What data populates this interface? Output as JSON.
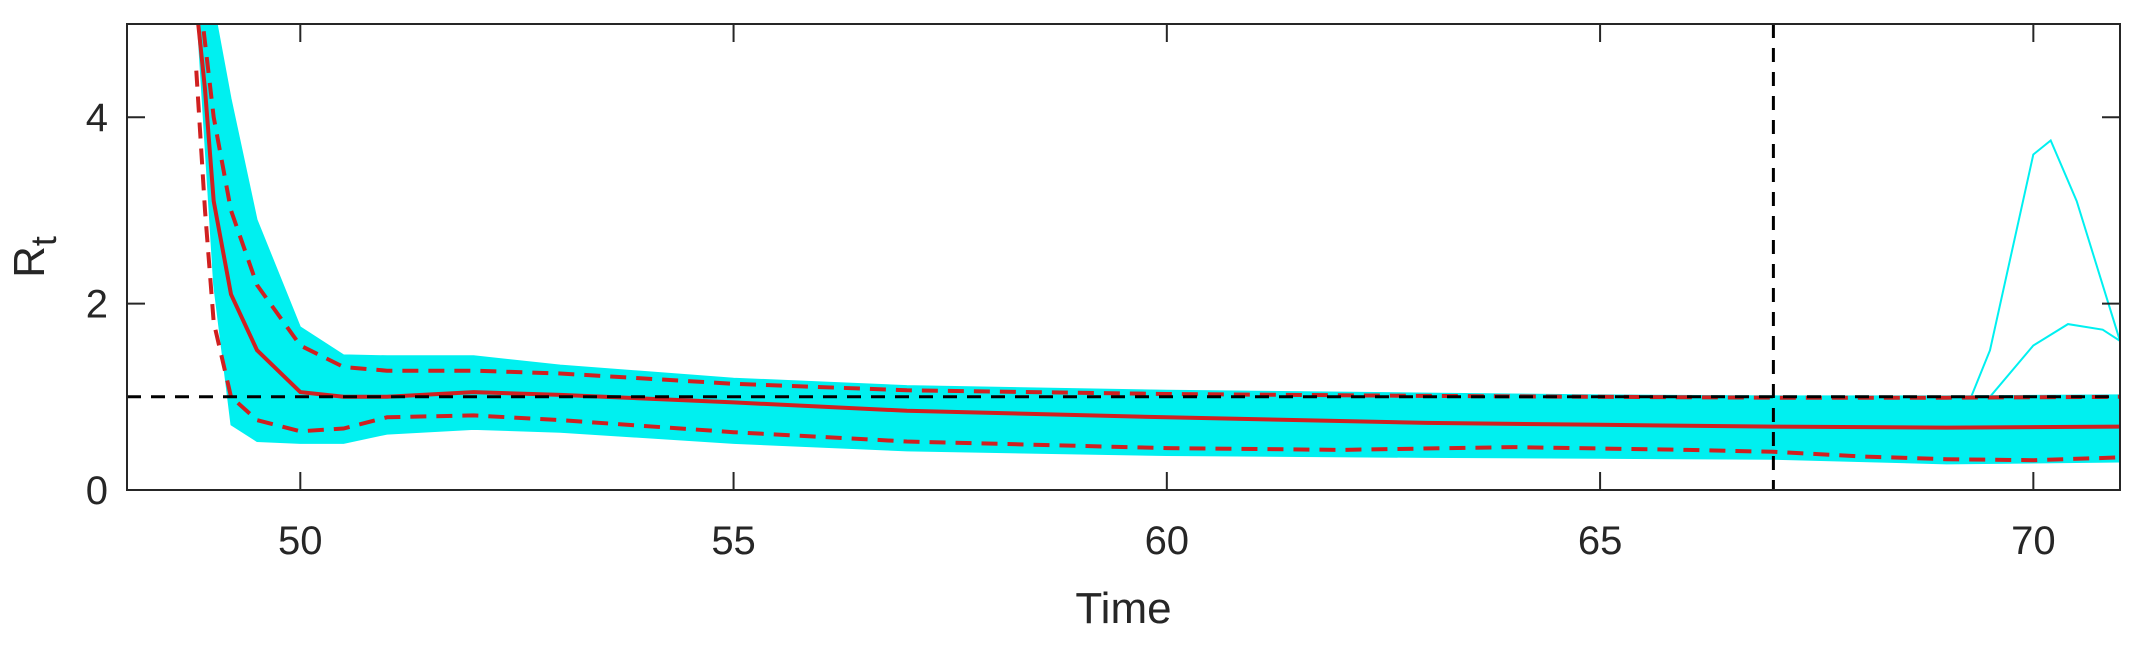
{
  "chart_data": {
    "type": "line",
    "title": "",
    "xlabel": "Time",
    "ylabel": "R",
    "ylabel_subscript": "t",
    "xlim": [
      48,
      71
    ],
    "ylim": [
      0,
      5
    ],
    "x_ticks": [
      50,
      55,
      60,
      65,
      70
    ],
    "x_tick_labels": [
      "50",
      "55",
      "60",
      "65",
      "70"
    ],
    "y_ticks": [
      0,
      2,
      4
    ],
    "y_tick_labels": [
      "0",
      "2",
      "4"
    ],
    "grid": false,
    "legend": "none",
    "reference_lines": {
      "horizontal_y": 1,
      "vertical_x": 67
    },
    "colors": {
      "samples": "#00f0f0",
      "median": "#d02020",
      "bounds": "#d02020",
      "reference": "#000000",
      "axes": "#262626"
    },
    "series": [
      {
        "style": "solid",
        "x": [
          48.8,
          48.9,
          49.0,
          49.2,
          49.5,
          50.0,
          50.5,
          51.0,
          52.0,
          53.0,
          55.0,
          57.0,
          60.0,
          63.0,
          65.0,
          67.0,
          69.0,
          71.0
        ],
        "y": [
          5.2,
          4.3,
          3.1,
          2.1,
          1.5,
          1.05,
          1.0,
          1.0,
          1.05,
          1.02,
          0.94,
          0.85,
          0.78,
          0.72,
          0.7,
          0.68,
          0.67,
          0.68
        ]
      },
      {
        "style": "dashed",
        "x": [
          48.85,
          49.0,
          49.2,
          49.5,
          50.0,
          50.5,
          51.0,
          52.0,
          53.0,
          55.0,
          57.0,
          60.0,
          63.0,
          65.0,
          67.0,
          69.0,
          71.0
        ],
        "y": [
          5.2,
          4.0,
          3.0,
          2.2,
          1.55,
          1.32,
          1.28,
          1.28,
          1.25,
          1.14,
          1.07,
          1.03,
          1.01,
          1.0,
          0.99,
          0.99,
          1.0
        ]
      },
      {
        "style": "dashed",
        "x": [
          48.8,
          48.9,
          49.0,
          49.2,
          49.5,
          50.0,
          50.5,
          51.0,
          52.0,
          53.0,
          55.0,
          57.0,
          60.0,
          62.0,
          64.0,
          66.0,
          67.0,
          68.0,
          69.0,
          70.0,
          71.0
        ],
        "y": [
          4.5,
          3.0,
          1.8,
          1.0,
          0.75,
          0.63,
          0.66,
          0.78,
          0.8,
          0.75,
          0.62,
          0.52,
          0.45,
          0.43,
          0.46,
          0.43,
          0.41,
          0.36,
          0.33,
          0.32,
          0.35
        ]
      }
    ],
    "sample_band": {
      "x": [
        48.8,
        49.0,
        49.2,
        49.5,
        50.0,
        50.5,
        51.0,
        52.0,
        53.0,
        55.0,
        57.0,
        60.0,
        63.0,
        65.0,
        67.0,
        69.0,
        71.0
      ],
      "upper": [
        5.2,
        5.2,
        4.2,
        2.9,
        1.75,
        1.45,
        1.44,
        1.44,
        1.34,
        1.2,
        1.12,
        1.07,
        1.04,
        1.02,
        1.01,
        1.01,
        1.02
      ],
      "lower": [
        5.2,
        2.2,
        0.7,
        0.52,
        0.5,
        0.5,
        0.6,
        0.65,
        0.62,
        0.5,
        0.42,
        0.37,
        0.35,
        0.34,
        0.33,
        0.28,
        0.3
      ]
    },
    "outlier_traces": [
      {
        "x": [
          69.0,
          69.5,
          70.0,
          70.2,
          70.5,
          71.0
        ],
        "y": [
          0.35,
          1.5,
          3.6,
          3.75,
          3.1,
          1.6
        ]
      },
      {
        "x": [
          69.5,
          70.0,
          70.4,
          70.8,
          71.0
        ],
        "y": [
          1.0,
          1.55,
          1.78,
          1.72,
          1.6
        ]
      }
    ]
  }
}
